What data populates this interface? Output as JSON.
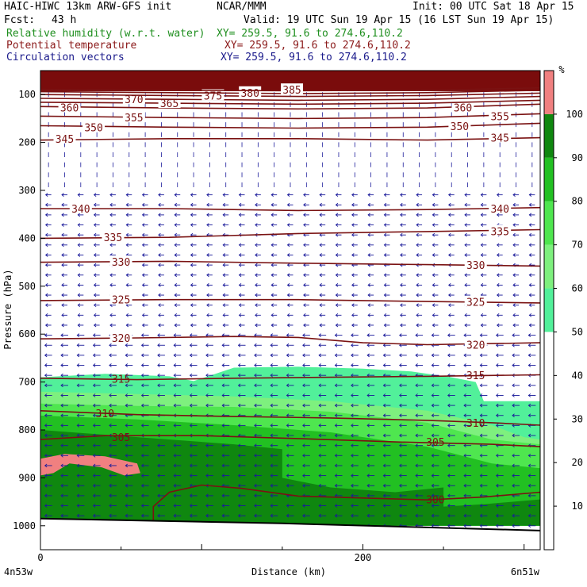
{
  "header": {
    "left_line1": "HAIC-HIWC 13km ARW-GFS init",
    "center_line1": "NCAR/MMM",
    "right_line1": "Init: 00 UTC Sat 18 Apr 15",
    "left_line2": "Fcst:",
    "fcst_value": "43 h",
    "right_line2": "Valid: 19 UTC Sun 19 Apr 15 (16 LST Sun 19 Apr 15)"
  },
  "fields": [
    {
      "name": "Relative humidity (w.r.t. water)",
      "xy": "XY= 259.5, 91.6 to 274.6,110.2",
      "color": "#1f8f1f"
    },
    {
      "name": "Potential temperature",
      "xy": "XY= 259.5, 91.6 to 274.6,110.2",
      "color": "#8b1a1a"
    },
    {
      "name": "Circulation vectors",
      "xy": "XY= 259.5, 91.6 to 274.6,110.2",
      "color": "#1a1a8b"
    }
  ],
  "colors": {
    "theta": "#7a1212",
    "vectors": "#1a1a9a",
    "rh_50_60": "#52f09a",
    "rh_60_70": "#7ef07e",
    "rh_70_80": "#4fe64f",
    "rh_80_90": "#22c022",
    "rh_90_100": "#0f870f",
    "rh_100_plus": "#f08080",
    "stratosphere": "#7a0c0c",
    "terrain": "#000000"
  },
  "chart_data": {
    "type": "cross-section",
    "title": "",
    "ylabel": "Pressure (hPa)",
    "xlabel": "Distance (km)",
    "x_ticks": [
      0,
      200
    ],
    "x_range": [
      0,
      310
    ],
    "y_ticks": [
      100,
      200,
      300,
      400,
      500,
      600,
      700,
      800,
      900,
      1000
    ],
    "y_range": [
      50,
      1050
    ],
    "left_endpoint": "4n53w",
    "right_endpoint": "6n51w",
    "colorbar": {
      "unit": "%",
      "ticks": [
        10,
        20,
        30,
        40,
        50,
        60,
        70,
        80,
        90,
        100
      ],
      "range": [
        0,
        110
      ],
      "levels": [
        {
          "from": 0,
          "to": 50,
          "color": "#ffffff"
        },
        {
          "from": 50,
          "to": 60,
          "color": "#52f09a"
        },
        {
          "from": 60,
          "to": 70,
          "color": "#7ef07e"
        },
        {
          "from": 70,
          "to": 80,
          "color": "#4fe64f"
        },
        {
          "from": 80,
          "to": 90,
          "color": "#22c022"
        },
        {
          "from": 90,
          "to": 100,
          "color": "#0f870f"
        },
        {
          "from": 100,
          "to": 110,
          "color": "#f08080"
        }
      ]
    },
    "theta_contours": [
      {
        "value": 300,
        "points": [
          [
            70,
            1000
          ],
          [
            70,
            960
          ],
          [
            80,
            930
          ],
          [
            100,
            915
          ],
          [
            125,
            922
          ],
          [
            160,
            938
          ],
          [
            200,
            942
          ],
          [
            240,
            946
          ],
          [
            275,
            940
          ],
          [
            310,
            930
          ]
        ],
        "labels": [
          {
            "x": 245,
            "p": 945
          }
        ]
      },
      {
        "value": 305,
        "points": [
          [
            0,
            820
          ],
          [
            40,
            812
          ],
          [
            100,
            812
          ],
          [
            160,
            818
          ],
          [
            220,
            825
          ],
          [
            280,
            830
          ],
          [
            310,
            835
          ]
        ],
        "labels": [
          {
            "x": 50,
            "p": 815
          },
          {
            "x": 245,
            "p": 825
          }
        ]
      },
      {
        "value": 310,
        "points": [
          [
            0,
            760
          ],
          [
            60,
            768
          ],
          [
            120,
            772
          ],
          [
            180,
            775
          ],
          [
            240,
            780
          ],
          [
            280,
            785
          ],
          [
            310,
            790
          ]
        ],
        "labels": [
          {
            "x": 40,
            "p": 765
          },
          {
            "x": 270,
            "p": 785
          }
        ]
      },
      {
        "value": 315,
        "points": [
          [
            0,
            692
          ],
          [
            60,
            695
          ],
          [
            120,
            692
          ],
          [
            180,
            690
          ],
          [
            240,
            688
          ],
          [
            310,
            685
          ]
        ],
        "labels": [
          {
            "x": 50,
            "p": 693
          },
          {
            "x": 270,
            "p": 686
          }
        ]
      },
      {
        "value": 320,
        "points": [
          [
            0,
            610
          ],
          [
            60,
            608
          ],
          [
            120,
            605
          ],
          [
            160,
            607
          ],
          [
            200,
            618
          ],
          [
            240,
            622
          ],
          [
            310,
            618
          ]
        ],
        "labels": [
          {
            "x": 50,
            "p": 608
          },
          {
            "x": 270,
            "p": 622
          }
        ]
      },
      {
        "value": 325,
        "points": [
          [
            0,
            530
          ],
          [
            80,
            528
          ],
          [
            160,
            528
          ],
          [
            240,
            532
          ],
          [
            310,
            535
          ]
        ],
        "labels": [
          {
            "x": 50,
            "p": 528
          },
          {
            "x": 270,
            "p": 533
          }
        ]
      },
      {
        "value": 330,
        "points": [
          [
            0,
            450
          ],
          [
            80,
            448
          ],
          [
            160,
            452
          ],
          [
            240,
            455
          ],
          [
            310,
            458
          ]
        ],
        "labels": [
          {
            "x": 50,
            "p": 449
          },
          {
            "x": 270,
            "p": 456
          }
        ]
      },
      {
        "value": 335,
        "points": [
          [
            0,
            400
          ],
          [
            80,
            398
          ],
          [
            160,
            390
          ],
          [
            240,
            386
          ],
          [
            310,
            382
          ]
        ],
        "labels": [
          {
            "x": 45,
            "p": 398
          },
          {
            "x": 285,
            "p": 385
          }
        ]
      },
      {
        "value": 340,
        "points": [
          [
            0,
            338
          ],
          [
            80,
            338
          ],
          [
            160,
            342
          ],
          [
            240,
            340
          ],
          [
            310,
            336
          ]
        ],
        "labels": [
          {
            "x": 25,
            "p": 338
          },
          {
            "x": 285,
            "p": 338
          }
        ]
      },
      {
        "value": 345,
        "points": [
          [
            0,
            195
          ],
          [
            80,
            192
          ],
          [
            160,
            192
          ],
          [
            240,
            195
          ],
          [
            310,
            190
          ]
        ],
        "labels": [
          {
            "x": 15,
            "p": 192
          },
          {
            "x": 285,
            "p": 190
          }
        ]
      },
      {
        "value": 350,
        "points": [
          [
            0,
            165
          ],
          [
            80,
            168
          ],
          [
            160,
            170
          ],
          [
            240,
            168
          ],
          [
            310,
            160
          ]
        ],
        "labels": [
          {
            "x": 33,
            "p": 168
          },
          {
            "x": 260,
            "p": 166
          }
        ]
      },
      {
        "value": 355,
        "points": [
          [
            0,
            145
          ],
          [
            80,
            148
          ],
          [
            160,
            150
          ],
          [
            240,
            148
          ],
          [
            310,
            140
          ]
        ],
        "labels": [
          {
            "x": 58,
            "p": 148
          },
          {
            "x": 285,
            "p": 145
          }
        ]
      },
      {
        "value": 360,
        "points": [
          [
            0,
            125
          ],
          [
            80,
            128
          ],
          [
            160,
            130
          ],
          [
            240,
            128
          ],
          [
            310,
            120
          ]
        ],
        "labels": [
          {
            "x": 18,
            "p": 127
          },
          {
            "x": 262,
            "p": 127
          }
        ]
      },
      {
        "value": 365,
        "points": [
          [
            0,
            116
          ],
          [
            80,
            118
          ],
          [
            160,
            120
          ],
          [
            240,
            118
          ],
          [
            310,
            112
          ]
        ],
        "labels": [
          {
            "x": 80,
            "p": 118
          }
        ]
      },
      {
        "value": 370,
        "points": [
          [
            0,
            108
          ],
          [
            80,
            110
          ],
          [
            160,
            112
          ],
          [
            240,
            110
          ],
          [
            310,
            104
          ]
        ],
        "labels": [
          {
            "x": 58,
            "p": 110
          }
        ]
      },
      {
        "value": 375,
        "points": [
          [
            0,
            100
          ],
          [
            80,
            102
          ],
          [
            160,
            104
          ],
          [
            240,
            102
          ],
          [
            310,
            97
          ]
        ],
        "labels": [
          {
            "x": 107,
            "p": 102
          }
        ]
      },
      {
        "value": 380,
        "points": [
          [
            0,
            94
          ],
          [
            80,
            96
          ],
          [
            160,
            98
          ],
          [
            240,
            96
          ],
          [
            310,
            91
          ]
        ],
        "labels": [
          {
            "x": 130,
            "p": 96
          }
        ]
      },
      {
        "value": 385,
        "points": [
          [
            0,
            89
          ],
          [
            80,
            91
          ],
          [
            160,
            92
          ],
          [
            240,
            91
          ],
          [
            310,
            86
          ]
        ],
        "labels": [
          {
            "x": 156,
            "p": 90
          }
        ]
      }
    ],
    "rh_regions": [
      {
        "level": "50-60",
        "points": [
          [
            0,
            690
          ],
          [
            40,
            683
          ],
          [
            80,
            688
          ],
          [
            95,
            698
          ],
          [
            120,
            670
          ],
          [
            160,
            668
          ],
          [
            200,
            672
          ],
          [
            230,
            678
          ],
          [
            255,
            690
          ],
          [
            270,
            700
          ],
          [
            275,
            740
          ],
          [
            310,
            740
          ],
          [
            310,
            1000
          ],
          [
            0,
            1000
          ]
        ]
      },
      {
        "level": "60-70",
        "points": [
          [
            0,
            720
          ],
          [
            60,
            725
          ],
          [
            120,
            730
          ],
          [
            180,
            740
          ],
          [
            240,
            760
          ],
          [
            280,
            790
          ],
          [
            300,
            815
          ],
          [
            310,
            820
          ],
          [
            310,
            1000
          ],
          [
            0,
            1000
          ]
        ]
      },
      {
        "level": "70-80",
        "points": [
          [
            0,
            745
          ],
          [
            60,
            750
          ],
          [
            120,
            752
          ],
          [
            180,
            762
          ],
          [
            240,
            785
          ],
          [
            280,
            820
          ],
          [
            310,
            830
          ],
          [
            310,
            1000
          ],
          [
            0,
            1000
          ]
        ]
      },
      {
        "level": "80-90",
        "points": [
          [
            0,
            770
          ],
          [
            60,
            778
          ],
          [
            120,
            790
          ],
          [
            180,
            805
          ],
          [
            240,
            835
          ],
          [
            280,
            870
          ],
          [
            310,
            880
          ],
          [
            310,
            1000
          ],
          [
            0,
            1000
          ]
        ]
      },
      {
        "level": "90-100",
        "points": [
          [
            0,
            800
          ],
          [
            60,
            815
          ],
          [
            120,
            830
          ],
          [
            150,
            840
          ],
          [
            150,
            900
          ],
          [
            180,
            920
          ],
          [
            220,
            930
          ],
          [
            250,
            920
          ],
          [
            250,
            960
          ],
          [
            275,
            955
          ],
          [
            310,
            945
          ],
          [
            310,
            1000
          ],
          [
            0,
            1000
          ]
        ]
      },
      {
        "level": "100+",
        "points": [
          [
            0,
            860
          ],
          [
            15,
            850
          ],
          [
            40,
            855
          ],
          [
            60,
            870
          ],
          [
            62,
            890
          ],
          [
            52,
            895
          ],
          [
            38,
            878
          ],
          [
            18,
            870
          ],
          [
            8,
            890
          ],
          [
            0,
            895
          ]
        ]
      }
    ],
    "vector_field": {
      "direction": "westward",
      "columns": 31,
      "levels": 44
    }
  }
}
